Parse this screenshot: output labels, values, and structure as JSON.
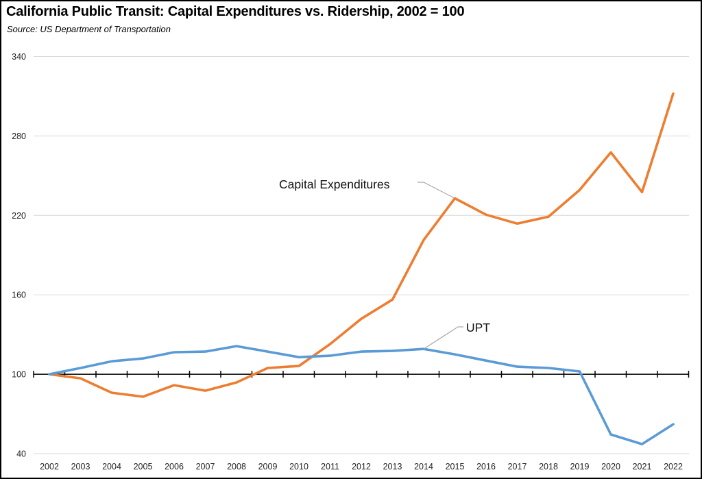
{
  "chart_data": {
    "type": "line",
    "title": "California Public Transit:  Capital Expenditures vs. Ridership, 2002 = 100",
    "subtitle": "Source:  US Department of Transportation",
    "xlabel": "",
    "ylabel": "",
    "x": [
      "2002",
      "2003",
      "2004",
      "2005",
      "2006",
      "2007",
      "2008",
      "2009",
      "2010",
      "2011",
      "2012",
      "2013",
      "2014",
      "2015",
      "2016",
      "2017",
      "2018",
      "2019",
      "2020",
      "2021",
      "2022"
    ],
    "ylim": [
      40,
      340
    ],
    "yticks": [
      "340",
      "280",
      "220",
      "160",
      "100",
      "40"
    ],
    "ytick_values": [
      340,
      280,
      220,
      160,
      100,
      40
    ],
    "baseline": 100,
    "grid": true,
    "legend": "none (inline annotations)",
    "series": [
      {
        "name": "Capital Expenditures",
        "color": "#ED7D31",
        "values": [
          100,
          96.9,
          86,
          83,
          91.7,
          87.6,
          93.8,
          104.7,
          106.2,
          122.8,
          141.9,
          156.4,
          201.4,
          232.9,
          220.5,
          213.8,
          219,
          239.2,
          267.6,
          237.6,
          312
        ]
      },
      {
        "name": "UPT",
        "color": "#5B9BD5",
        "values": [
          100,
          104.7,
          109.8,
          111.9,
          116.6,
          117.1,
          121.2,
          117.1,
          112.9,
          114,
          117.1,
          117.6,
          119.1,
          115,
          110.3,
          105.7,
          104.7,
          102.1,
          54.5,
          47.2,
          62.2
        ]
      }
    ],
    "annotations": [
      {
        "text": "Capital Expenditures",
        "series": "Capital Expenditures",
        "points_to": "2015"
      },
      {
        "text": "UPT",
        "series": "UPT",
        "points_to": "2014"
      }
    ]
  }
}
